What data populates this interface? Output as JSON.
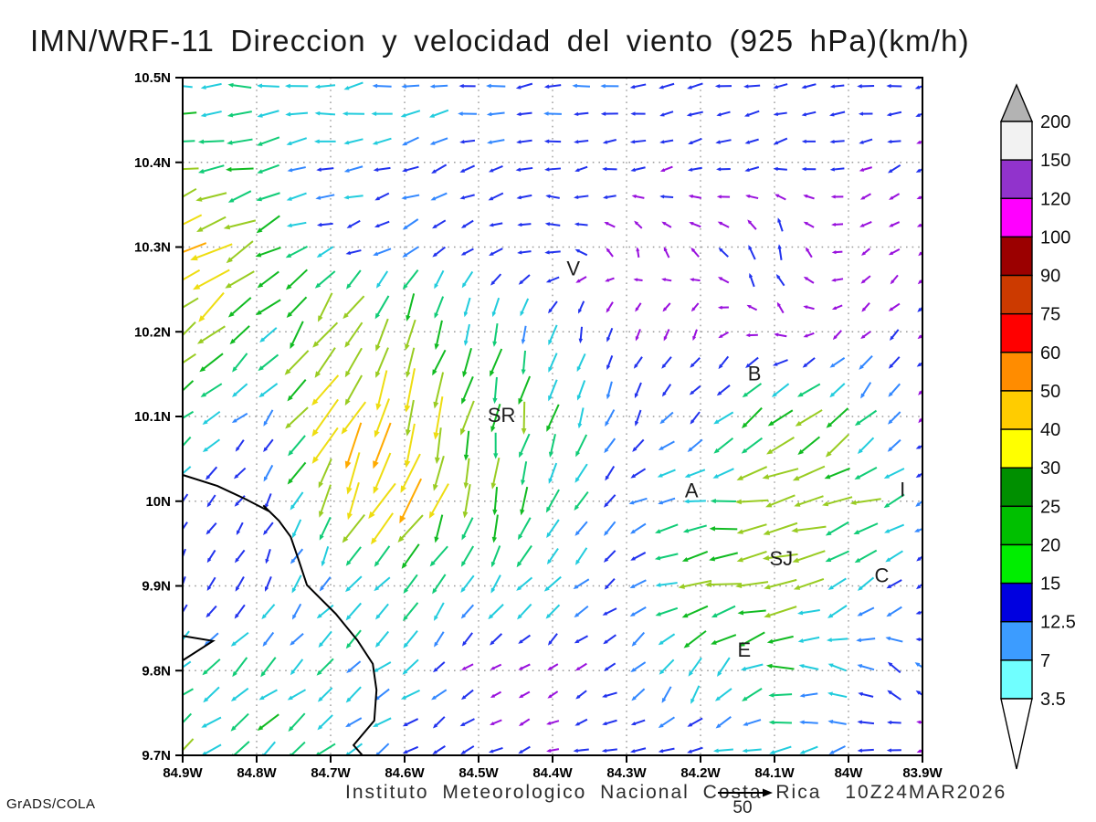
{
  "title": "IMN/WRF-11 Direccion y velocidad del viento (925 hPa)(km/h)",
  "credit": "GrADS/COLA",
  "footer": {
    "institute": "Instituto Meteorologico Nacional Costa Rica",
    "timestamp": "10Z24MAR2026",
    "reference_value": "50"
  },
  "chart_data": {
    "type": "vector_field",
    "title": "IMN/WRF-11 Direccion y velocidad del viento (925 hPa)(km/h)",
    "units": "km/h",
    "level": "925 hPa",
    "grid_lines": true,
    "lon_range": [
      -84.9,
      -83.9
    ],
    "lat_range": [
      9.7,
      10.5
    ],
    "x_axis": {
      "labels": [
        "84.9W",
        "84.8W",
        "84.7W",
        "84.6W",
        "84.5W",
        "84.4W",
        "84.3W",
        "84.2W",
        "84.1W",
        "84W",
        "83.9W"
      ],
      "lons": [
        -84.9,
        -84.8,
        -84.7,
        -84.6,
        -84.5,
        -84.4,
        -84.3,
        -84.2,
        -84.1,
        -84.0,
        -83.9
      ]
    },
    "y_axis": {
      "labels": [
        "10.5N",
        "10.4N",
        "10.3N",
        "10.2N",
        "10.1N",
        "10N",
        "9.9N",
        "9.8N",
        "9.7N"
      ],
      "lats": [
        10.5,
        10.4,
        10.3,
        10.2,
        10.1,
        10.0,
        9.9,
        9.8,
        9.7
      ]
    },
    "colorbar": {
      "labels": [
        "200",
        "150",
        "120",
        "100",
        "90",
        "75",
        "60",
        "50",
        "40",
        "30",
        "25",
        "20",
        "15",
        "12.5",
        "7",
        "3.5"
      ],
      "segment_colors": [
        "#f2f2f2",
        "#9133cc",
        "#ff00ff",
        "#9b0000",
        "#cc3a00",
        "#ff0000",
        "#ff8c00",
        "#ffcc00",
        "#ffff00",
        "#008f00",
        "#00c000",
        "#00ee00",
        "#0000e0",
        "#3c9cff",
        "#70ffff"
      ],
      "over_color": "#b3b3b3",
      "under_color": "#ffffff"
    },
    "vector_palette": {
      "thresholds": [
        7,
        12.5,
        15,
        20,
        25,
        30,
        40,
        50,
        60,
        75,
        90
      ],
      "colors": [
        "#9911dd",
        "#2233ee",
        "#3388ff",
        "#22ccdd",
        "#11cc77",
        "#11bb22",
        "#99cc22",
        "#eedd11",
        "#ffaa00",
        "#ff6611",
        "#ee1111",
        "#bb0000"
      ]
    },
    "arrow_grid": {
      "cols": 27,
      "rows": 25
    },
    "stations": [
      {
        "label": "V",
        "lon": -84.372,
        "lat": 10.274
      },
      {
        "label": "B",
        "lon": -84.127,
        "lat": 10.15
      },
      {
        "label": "SR",
        "lon": -84.469,
        "lat": 10.101
      },
      {
        "label": "A",
        "lon": -84.212,
        "lat": 10.012
      },
      {
        "label": "I",
        "lon": -83.927,
        "lat": 10.013
      },
      {
        "label": "SJ",
        "lon": -84.091,
        "lat": 9.932
      },
      {
        "label": "C",
        "lon": -83.955,
        "lat": 9.912
      },
      {
        "label": "E",
        "lon": -84.141,
        "lat": 9.824
      }
    ],
    "coastline": [
      [
        -84.9,
        10.031
      ],
      [
        -84.853,
        10.018
      ],
      [
        -84.814,
        10.002
      ],
      [
        -84.783,
        9.988
      ],
      [
        -84.791,
        9.995
      ],
      [
        -84.77,
        9.977
      ],
      [
        -84.754,
        9.958
      ],
      [
        -84.743,
        9.93
      ],
      [
        -84.732,
        9.901
      ],
      [
        -84.693,
        9.867
      ],
      [
        -84.664,
        9.836
      ],
      [
        -84.643,
        9.808
      ],
      [
        -84.638,
        9.777
      ],
      [
        -84.641,
        9.741
      ],
      [
        -84.669,
        9.712
      ],
      [
        -84.657,
        9.7
      ]
    ],
    "cape": [
      [
        -84.9,
        9.841
      ],
      [
        -84.859,
        9.835
      ],
      [
        -84.9,
        9.812
      ]
    ],
    "wind_grid": {
      "lons": [
        -84.9,
        -84.8,
        -84.7,
        -84.6,
        -84.5,
        -84.4,
        -84.3,
        -84.2,
        -84.1,
        -84.0,
        -83.9
      ],
      "lats": [
        10.5,
        10.4,
        10.3,
        10.2,
        10.1,
        10.0,
        9.9,
        9.8,
        9.7
      ],
      "u": [
        [
          -18,
          -17,
          -16,
          -15,
          -14,
          -12,
          -11,
          -10,
          -10,
          -10,
          -10
        ],
        [
          -28,
          -20,
          -14,
          -12,
          -10,
          -9,
          -9,
          -8,
          -7,
          -7,
          -7
        ],
        [
          -40,
          -28,
          -10,
          -10,
          -7,
          -9,
          0,
          -5,
          -3,
          -4,
          -4
        ],
        [
          -32,
          -14,
          -20,
          -10,
          -4,
          -4,
          -3,
          -2,
          -5,
          -4,
          -5
        ],
        [
          -20,
          -6,
          -25,
          -15,
          -5,
          -6,
          -5,
          -8,
          -22,
          -18,
          -5
        ],
        [
          -7,
          -3,
          -12,
          -25,
          -5,
          -8,
          -10,
          -20,
          -36,
          -28,
          -10
        ],
        [
          -4,
          -5,
          -10,
          -12,
          -10,
          -12,
          -8,
          -32,
          -32,
          -15,
          -8
        ],
        [
          -14,
          -14,
          -13,
          -12,
          -5,
          -4,
          -8,
          -8,
          -22,
          -12,
          -9
        ],
        [
          -20,
          -18,
          -14,
          -10,
          -8,
          -7,
          -10,
          -14,
          -16,
          -10,
          -6
        ]
      ],
      "v": [
        [
          -2,
          -1,
          -2,
          -2,
          -1,
          -1,
          -1,
          -1,
          -1,
          -1,
          -1
        ],
        [
          -5,
          -3,
          -3,
          -4,
          -3,
          -2,
          -2,
          -2,
          -2,
          -2,
          -3
        ],
        [
          -26,
          -16,
          -2,
          -6,
          -4,
          2,
          4,
          4,
          12,
          -2,
          -3
        ],
        [
          -28,
          -14,
          -30,
          -32,
          -20,
          -14,
          -6,
          -5,
          3,
          -4,
          -5
        ],
        [
          -16,
          -5,
          -40,
          -45,
          -35,
          -25,
          -10,
          -8,
          -18,
          -20,
          -4
        ],
        [
          -8,
          -6,
          -30,
          -45,
          -25,
          -20,
          -6,
          -3,
          -8,
          -10,
          -5
        ],
        [
          -8,
          -9,
          -12,
          -15,
          -18,
          -12,
          -5,
          -7,
          -6,
          -12,
          -8
        ],
        [
          -12,
          -12,
          -11,
          -10,
          -3,
          -2,
          -6,
          -20,
          -2,
          6,
          7
        ],
        [
          -16,
          -14,
          -10,
          -6,
          -4,
          -3,
          -2,
          -3,
          -4,
          -3,
          -2
        ]
      ]
    }
  }
}
